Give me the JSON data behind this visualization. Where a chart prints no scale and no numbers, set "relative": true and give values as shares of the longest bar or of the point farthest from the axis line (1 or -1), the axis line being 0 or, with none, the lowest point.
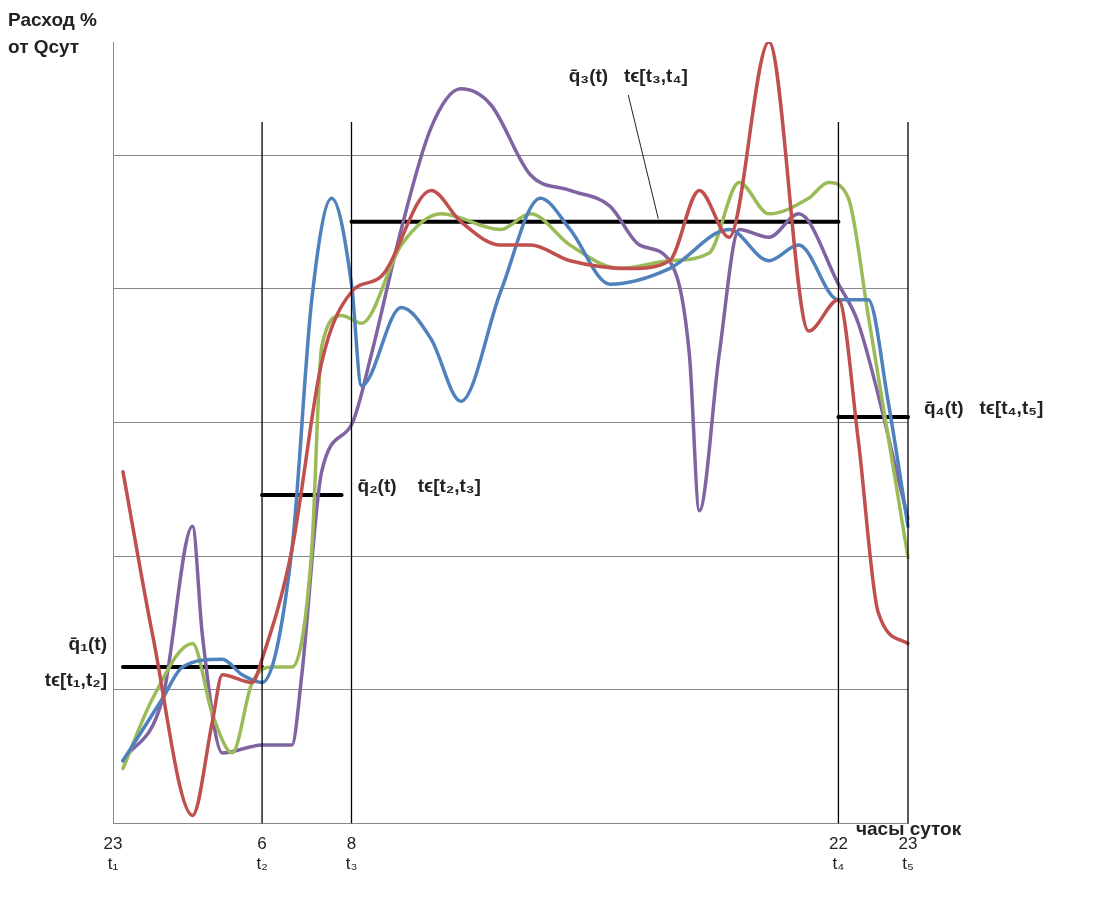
{
  "chart_data": {
    "type": "line",
    "relative": true,
    "ylabel": "Расход % от Qсут",
    "xlabel": "часы суток",
    "categories": [
      "23 t₁",
      null,
      null,
      null,
      null,
      null,
      null,
      null,
      null,
      null,
      null,
      null,
      null,
      null,
      null,
      "6 t₂",
      null,
      null,
      null,
      null,
      null,
      null,
      null,
      null,
      "8 t₃",
      null,
      null,
      null,
      null,
      null,
      null,
      null,
      null,
      null,
      null,
      null,
      null,
      null,
      null,
      null,
      null,
      null,
      null,
      null,
      null,
      null,
      null,
      null,
      null,
      null,
      null,
      null,
      null,
      null,
      null,
      null,
      null,
      null,
      null,
      null,
      null,
      null,
      null,
      null,
      null,
      null,
      null,
      null,
      null,
      null,
      null,
      null,
      null,
      "22 t₄",
      null,
      null,
      null,
      null,
      null,
      null,
      "23 t₅"
    ],
    "grid": "y",
    "legend": false,
    "marker": "none",
    "line_style": "solid",
    "ref_lines": [
      {
        "axis": "x",
        "value": "6 t₂",
        "color": "#000000"
      },
      {
        "axis": "x",
        "value": "8 t₃",
        "color": "#000000"
      },
      {
        "axis": "x",
        "value": "22 t₄",
        "color": "#000000"
      },
      {
        "axis": "x",
        "value": "23 t₅",
        "color": "#000000"
      }
    ],
    "series": [
      {
        "color": "#c0504d",
        "values": [
          null,
          0.45,
          null,
          null,
          0.24,
          null,
          null,
          null,
          0.01,
          null,
          0.13,
          0.19,
          null,
          null,
          0.18,
          0.21,
          null,
          null,
          0.35,
          null,
          null,
          0.59,
          null,
          null,
          0.68,
          null,
          null,
          0.7,
          null,
          null,
          null,
          null,
          0.81,
          null,
          null,
          0.77,
          null,
          null,
          null,
          0.74,
          null,
          null,
          0.74,
          null,
          null,
          null,
          0.72,
          null,
          null,
          null,
          null,
          null,
          0.71,
          null,
          null,
          null,
          0.72,
          null,
          null,
          0.81,
          null,
          null,
          0.75,
          null,
          null,
          null,
          1.0,
          null,
          null,
          null,
          0.63,
          null,
          null,
          0.67,
          null,
          0.49,
          null,
          0.27,
          null,
          null,
          0.23
        ]
      },
      {
        "color": "#4f81bd",
        "values": [
          null,
          0.08,
          null,
          null,
          null,
          0.16,
          null,
          0.2,
          null,
          null,
          null,
          0.21,
          null,
          0.19,
          null,
          0.18,
          null,
          null,
          0.35,
          null,
          0.67,
          null,
          0.8,
          null,
          0.69,
          0.56,
          null,
          null,
          null,
          0.66,
          null,
          null,
          0.62,
          null,
          null,
          0.54,
          null,
          null,
          null,
          0.68,
          null,
          null,
          null,
          0.8,
          null,
          null,
          0.76,
          null,
          null,
          null,
          0.69,
          null,
          null,
          null,
          null,
          null,
          0.71,
          null,
          null,
          null,
          null,
          null,
          0.76,
          null,
          null,
          null,
          0.72,
          null,
          null,
          0.74,
          null,
          null,
          null,
          0.67,
          null,
          null,
          0.67,
          null,
          0.54,
          null,
          0.38
        ]
      },
      {
        "color": "#9bbb59",
        "values": [
          null,
          0.07,
          null,
          null,
          0.16,
          null,
          null,
          null,
          0.23,
          null,
          0.14,
          null,
          0.09,
          null,
          0.18,
          null,
          0.2,
          null,
          0.2,
          null,
          0.35,
          0.61,
          null,
          0.65,
          null,
          0.64,
          null,
          null,
          null,
          0.74,
          null,
          null,
          null,
          0.78,
          null,
          null,
          null,
          null,
          null,
          0.76,
          null,
          null,
          0.78,
          null,
          null,
          null,
          0.74,
          null,
          null,
          null,
          null,
          0.71,
          null,
          null,
          null,
          null,
          0.72,
          null,
          null,
          null,
          0.73,
          null,
          null,
          0.82,
          null,
          null,
          0.78,
          null,
          null,
          null,
          0.8,
          null,
          0.82,
          null,
          0.8,
          null,
          0.65,
          null,
          null,
          null,
          0.34
        ]
      },
      {
        "color": "#8064a2",
        "values": [
          null,
          0.08,
          null,
          null,
          null,
          0.16,
          null,
          null,
          0.38,
          0.24,
          null,
          0.09,
          null,
          null,
          null,
          0.1,
          null,
          null,
          0.1,
          0.19,
          null,
          0.45,
          null,
          null,
          0.51,
          null,
          0.6,
          null,
          null,
          0.76,
          null,
          null,
          0.89,
          null,
          null,
          0.94,
          null,
          null,
          0.92,
          null,
          null,
          null,
          0.83,
          null,
          null,
          null,
          0.81,
          null,
          null,
          null,
          0.79,
          null,
          null,
          0.74,
          null,
          null,
          0.72,
          null,
          0.6,
          0.4,
          null,
          0.6,
          null,
          0.76,
          null,
          null,
          0.75,
          null,
          null,
          0.78,
          null,
          null,
          null,
          0.69,
          null,
          0.64,
          null,
          null,
          null,
          null,
          0.39
        ]
      },
      {
        "color": "#000000",
        "values": [
          null,
          0.2,
          0.2,
          0.2,
          0.2,
          0.2,
          0.2,
          0.2,
          0.2,
          0.2,
          0.2,
          0.2,
          0.2,
          0.2,
          0.2,
          0.2,
          null,
          null,
          null,
          null,
          null,
          null,
          null,
          null,
          null,
          null,
          null,
          null,
          null,
          null,
          null,
          null,
          null,
          null,
          null,
          null,
          null,
          null,
          null,
          null,
          null,
          null,
          null,
          null,
          null,
          null,
          null,
          null,
          null,
          null,
          null,
          null,
          null,
          null,
          null,
          null,
          null,
          null,
          null,
          null,
          null,
          null,
          null,
          null,
          null,
          null,
          null,
          null,
          null,
          null,
          null,
          null,
          null,
          null,
          null,
          null,
          null,
          null,
          null,
          null,
          null
        ]
      },
      {
        "color": "#000000",
        "values": [
          null,
          null,
          null,
          null,
          null,
          null,
          null,
          null,
          null,
          null,
          null,
          null,
          null,
          null,
          null,
          0.42,
          0.42,
          0.42,
          0.42,
          0.42,
          0.42,
          0.42,
          0.42,
          0.42,
          null,
          null,
          null,
          null,
          null,
          null,
          null,
          null,
          null,
          null,
          null,
          null,
          null,
          null,
          null,
          null,
          null,
          null,
          null,
          null,
          null,
          null,
          null,
          null,
          null,
          null,
          null,
          null,
          null,
          null,
          null,
          null,
          null,
          null,
          null,
          null,
          null,
          null,
          null,
          null,
          null,
          null,
          null,
          null,
          null,
          null,
          null,
          null,
          null,
          null,
          null,
          null,
          null,
          null,
          null,
          null,
          null
        ]
      },
      {
        "color": "#000000",
        "values": [
          null,
          null,
          null,
          null,
          null,
          null,
          null,
          null,
          null,
          null,
          null,
          null,
          null,
          null,
          null,
          null,
          null,
          null,
          null,
          null,
          null,
          null,
          null,
          null,
          0.77,
          0.77,
          0.77,
          0.77,
          0.77,
          0.77,
          0.77,
          0.77,
          0.77,
          0.77,
          0.77,
          0.77,
          0.77,
          0.77,
          0.77,
          0.77,
          0.77,
          0.77,
          0.77,
          0.77,
          0.77,
          0.77,
          0.77,
          0.77,
          0.77,
          0.77,
          0.77,
          0.77,
          0.77,
          0.77,
          0.77,
          0.77,
          0.77,
          0.77,
          0.77,
          0.77,
          0.77,
          0.77,
          0.77,
          0.77,
          0.77,
          0.77,
          0.77,
          0.77,
          0.77,
          0.77,
          0.77,
          0.77,
          0.77,
          0.77,
          null,
          null,
          null,
          null,
          null,
          null,
          null
        ]
      },
      {
        "color": "#000000",
        "values": [
          null,
          null,
          null,
          null,
          null,
          null,
          null,
          null,
          null,
          null,
          null,
          null,
          null,
          null,
          null,
          null,
          null,
          null,
          null,
          null,
          null,
          null,
          null,
          null,
          null,
          null,
          null,
          null,
          null,
          null,
          null,
          null,
          null,
          null,
          null,
          null,
          null,
          null,
          null,
          null,
          null,
          null,
          null,
          null,
          null,
          null,
          null,
          null,
          null,
          null,
          null,
          null,
          null,
          null,
          null,
          null,
          null,
          null,
          null,
          null,
          null,
          null,
          null,
          null,
          null,
          null,
          null,
          null,
          null,
          null,
          null,
          null,
          null,
          0.52,
          0.52,
          0.52,
          0.52,
          0.52,
          0.52,
          0.52,
          0.52
        ]
      }
    ],
    "annotations": [
      "q̄₁(t)",
      "tϵ[t₁,t₂]",
      "q̄₂(t)    tϵ[t₂,t₃]",
      "q̄₃(t)   tϵ[t₃,t₄]",
      "q̄₄(t)   tϵ[t₄,t₅]"
    ]
  }
}
